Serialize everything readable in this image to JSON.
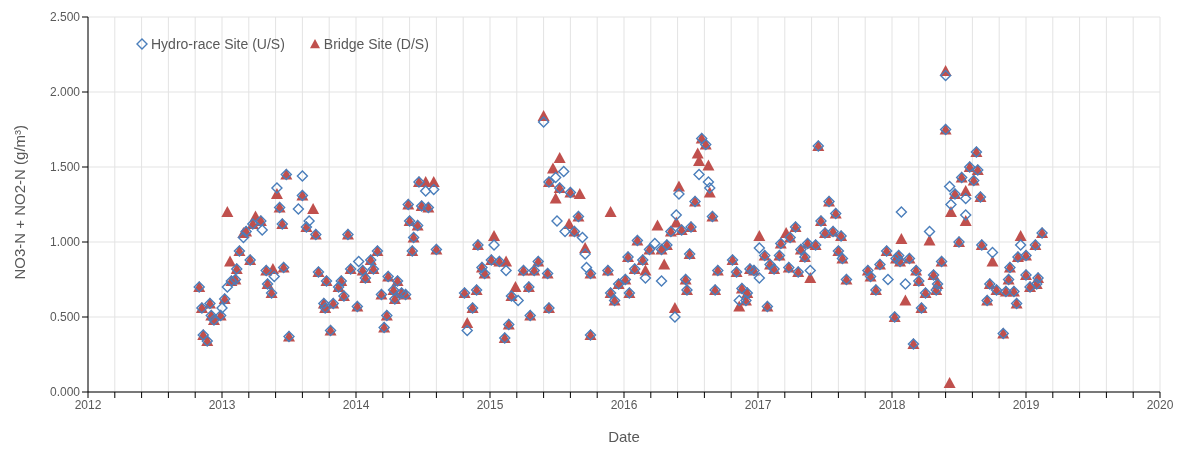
{
  "chart_data": {
    "type": "scatter",
    "xlabel": "Date",
    "ylabel": "NO3-N + NO2-N (g/m³)",
    "xlim": [
      2012,
      2020
    ],
    "ylim": [
      0,
      2.5
    ],
    "xticks": [
      2012,
      {
        "value": 2012.2,
        "label": null
      },
      {
        "value": 2012.4,
        "label": null
      },
      {
        "value": 2012.6,
        "label": null
      },
      {
        "value": 2012.8,
        "label": null
      },
      2013,
      {
        "value": 2013.2,
        "label": null
      },
      {
        "value": 2013.4,
        "label": null
      },
      {
        "value": 2013.6,
        "label": null
      },
      {
        "value": 2013.8,
        "label": null
      },
      2014,
      {
        "value": 2014.2,
        "label": null
      },
      {
        "value": 2014.4,
        "label": null
      },
      {
        "value": 2014.6,
        "label": null
      },
      {
        "value": 2014.8,
        "label": null
      },
      2015,
      {
        "value": 2015.2,
        "label": null
      },
      {
        "value": 2015.4,
        "label": null
      },
      {
        "value": 2015.6,
        "label": null
      },
      {
        "value": 2015.8,
        "label": null
      },
      2016,
      {
        "value": 2016.2,
        "label": null
      },
      {
        "value": 2016.4,
        "label": null
      },
      {
        "value": 2016.6,
        "label": null
      },
      {
        "value": 2016.8,
        "label": null
      },
      2017,
      {
        "value": 2017.2,
        "label": null
      },
      {
        "value": 2017.4,
        "label": null
      },
      {
        "value": 2017.6,
        "label": null
      },
      {
        "value": 2017.8,
        "label": null
      },
      2018,
      {
        "value": 2018.2,
        "label": null
      },
      {
        "value": 2018.4,
        "label": null
      },
      {
        "value": 2018.6,
        "label": null
      },
      {
        "value": 2018.8,
        "label": null
      },
      2019,
      {
        "value": 2019.2,
        "label": null
      },
      {
        "value": 2019.4,
        "label": null
      },
      {
        "value": 2019.6,
        "label": null
      },
      {
        "value": 2019.8,
        "label": null
      },
      2020
    ],
    "yticks": [
      {
        "value": 0,
        "label": "0.000"
      },
      {
        "value": 0.5,
        "label": "0.500"
      },
      {
        "value": 1,
        "label": "1.000"
      },
      {
        "value": 1.5,
        "label": "1.500"
      },
      {
        "value": 2,
        "label": "2.000"
      },
      {
        "value": 2.5,
        "label": "2.500"
      }
    ],
    "grid": true,
    "legend": "top left",
    "series": [
      {
        "name": "Hydro-race Site (U/S)",
        "color": "#4a7ebb",
        "marker": "diamond",
        "x": [
          2012.83,
          2012.85,
          2012.86,
          2012.89,
          2012.91,
          2012.92,
          2012.94,
          2012.99,
          2013.0,
          2013.02,
          2013.04,
          2013.07,
          2013.1,
          2013.11,
          2013.13,
          2013.16,
          2013.18,
          2013.21,
          2013.23,
          2013.29,
          2013.3,
          2013.33,
          2013.34,
          2013.37,
          2013.39,
          2013.41,
          2013.43,
          2013.45,
          2013.46,
          2013.48,
          2013.5,
          2013.57,
          2013.6,
          2013.6,
          2013.63,
          2013.65,
          2013.7,
          2013.72,
          2013.76,
          2013.77,
          2013.78,
          2013.81,
          2013.83,
          2013.87,
          2013.89,
          2013.91,
          2013.94,
          2013.96,
          2014.01,
          2014.02,
          2014.05,
          2014.07,
          2014.11,
          2014.13,
          2014.16,
          2014.19,
          2014.21,
          2014.23,
          2014.24,
          2014.28,
          2014.29,
          2014.31,
          2014.34,
          2014.37,
          2014.39,
          2014.4,
          2014.42,
          2014.43,
          2014.46,
          2014.47,
          2014.49,
          2014.52,
          2014.54,
          2014.58,
          2014.6,
          2014.81,
          2014.83,
          2014.87,
          2014.9,
          2014.91,
          2014.94,
          2014.96,
          2015.01,
          2015.03,
          2015.07,
          2015.11,
          2015.12,
          2015.14,
          2015.16,
          2015.21,
          2015.25,
          2015.29,
          2015.3,
          2015.33,
          2015.36,
          2015.4,
          2015.43,
          2015.44,
          2015.44,
          2015.49,
          2015.5,
          2015.52,
          2015.55,
          2015.56,
          2015.6,
          2015.63,
          2015.66,
          2015.69,
          2015.71,
          2015.72,
          2015.75,
          2015.75,
          2015.88,
          2015.9,
          2015.93,
          2015.96,
          2016.01,
          2016.03,
          2016.04,
          2016.08,
          2016.1,
          2016.14,
          2016.16,
          2016.19,
          2016.23,
          2016.28,
          2016.28,
          2016.32,
          2016.35,
          2016.38,
          2016.39,
          2016.41,
          2016.43,
          2016.46,
          2016.47,
          2016.49,
          2016.5,
          2016.53,
          2016.56,
          2016.58,
          2016.61,
          2016.63,
          2016.64,
          2016.66,
          2016.68,
          2016.7,
          2016.81,
          2016.84,
          2016.86,
          2016.88,
          2016.91,
          2016.92,
          2016.94,
          2016.97,
          2017.01,
          2017.01,
          2017.05,
          2017.07,
          2017.09,
          2017.12,
          2017.16,
          2017.17,
          2017.23,
          2017.24,
          2017.28,
          2017.3,
          2017.32,
          2017.35,
          2017.37,
          2017.39,
          2017.43,
          2017.45,
          2017.47,
          2017.5,
          2017.53,
          2017.56,
          2017.58,
          2017.6,
          2017.62,
          2017.63,
          2017.66,
          2017.82,
          2017.84,
          2017.88,
          2017.91,
          2017.96,
          2017.97,
          2018.02,
          2018.03,
          2018.05,
          2018.06,
          2018.07,
          2018.1,
          2018.13,
          2018.16,
          2018.18,
          2018.2,
          2018.22,
          2018.25,
          2018.28,
          2018.31,
          2018.33,
          2018.34,
          2018.37,
          2018.4,
          2018.4,
          2018.43,
          2018.44,
          2018.47,
          2018.5,
          2018.52,
          2018.55,
          2018.55,
          2018.58,
          2018.61,
          2018.63,
          2018.64,
          2018.66,
          2018.67,
          2018.71,
          2018.73,
          2018.75,
          2018.78,
          2018.83,
          2018.85,
          2018.87,
          2018.88,
          2018.91,
          2018.93,
          2018.94,
          2018.96,
          2019.0,
          2019.0,
          2019.03,
          2019.07,
          2019.08,
          2019.09,
          2019.12
        ],
        "values": [
          0.7,
          0.56,
          0.38,
          0.34,
          0.59,
          0.51,
          0.48,
          0.51,
          0.56,
          0.62,
          0.7,
          0.74,
          0.75,
          0.82,
          0.94,
          1.03,
          1.07,
          0.88,
          1.12,
          1.14,
          1.08,
          0.81,
          0.72,
          0.66,
          0.77,
          1.36,
          1.23,
          1.12,
          0.83,
          1.45,
          0.37,
          1.22,
          1.44,
          1.31,
          1.1,
          1.14,
          1.05,
          0.8,
          0.59,
          0.56,
          0.74,
          0.41,
          0.59,
          0.7,
          0.74,
          0.64,
          1.05,
          0.82,
          0.57,
          0.87,
          0.81,
          0.76,
          0.88,
          0.82,
          0.94,
          0.65,
          0.43,
          0.51,
          0.77,
          0.68,
          0.62,
          0.74,
          0.66,
          0.65,
          1.25,
          1.14,
          0.94,
          1.03,
          1.11,
          1.4,
          1.24,
          1.34,
          1.23,
          1.35,
          0.95,
          0.66,
          0.41,
          0.56,
          0.68,
          0.98,
          0.83,
          0.79,
          0.88,
          0.98,
          0.87,
          0.36,
          0.81,
          0.45,
          0.64,
          0.61,
          0.81,
          0.7,
          0.51,
          0.81,
          0.87,
          1.8,
          0.79,
          0.56,
          1.4,
          1.43,
          1.14,
          1.36,
          1.47,
          1.07,
          1.33,
          1.07,
          1.17,
          1.03,
          0.92,
          0.83,
          0.79,
          0.38,
          0.81,
          0.66,
          0.61,
          0.72,
          0.75,
          0.9,
          0.66,
          0.82,
          1.01,
          0.88,
          0.76,
          0.95,
          0.99,
          0.95,
          0.74,
          0.98,
          1.07,
          0.5,
          1.18,
          1.32,
          1.08,
          0.75,
          0.68,
          0.92,
          1.1,
          1.27,
          1.45,
          1.69,
          1.65,
          1.4,
          1.36,
          1.17,
          0.68,
          0.81,
          0.88,
          0.8,
          0.61,
          0.69,
          0.61,
          0.66,
          0.82,
          0.81,
          0.96,
          0.76,
          0.91,
          0.57,
          0.85,
          0.82,
          0.91,
          0.99,
          0.83,
          1.03,
          1.1,
          0.8,
          0.95,
          0.9,
          0.99,
          0.81,
          0.98,
          1.64,
          1.14,
          1.06,
          1.27,
          1.07,
          1.19,
          0.94,
          1.04,
          0.89,
          0.75,
          0.81,
          0.77,
          0.68,
          0.85,
          0.94,
          0.75,
          0.5,
          0.89,
          0.91,
          0.87,
          1.2,
          0.72,
          0.89,
          0.32,
          0.81,
          0.74,
          0.56,
          0.66,
          1.07,
          0.78,
          0.68,
          0.72,
          0.87,
          2.11,
          1.75,
          1.37,
          1.25,
          1.32,
          1.0,
          1.43,
          1.29,
          1.18,
          1.5,
          1.41,
          1.6,
          1.48,
          1.3,
          0.98,
          0.61,
          0.72,
          0.93,
          0.68,
          0.39,
          0.67,
          0.75,
          0.83,
          0.67,
          0.59,
          0.9,
          0.98,
          0.91,
          0.78,
          0.7,
          0.98,
          0.72,
          0.76,
          1.06
        ]
      },
      {
        "name": "Bridge Site (D/S)",
        "color": "#c0504d",
        "marker": "triangle",
        "x": [
          2012.83,
          2012.85,
          2012.86,
          2012.89,
          2012.91,
          2012.92,
          2012.94,
          2012.99,
          2013.02,
          2013.04,
          2013.06,
          2013.07,
          2013.1,
          2013.11,
          2013.13,
          2013.16,
          2013.18,
          2013.21,
          2013.23,
          2013.25,
          2013.29,
          2013.33,
          2013.34,
          2013.37,
          2013.38,
          2013.41,
          2013.43,
          2013.45,
          2013.46,
          2013.48,
          2013.5,
          2013.6,
          2013.63,
          2013.68,
          2013.7,
          2013.72,
          2013.76,
          2013.77,
          2013.78,
          2013.81,
          2013.83,
          2013.87,
          2013.89,
          2013.91,
          2013.94,
          2013.96,
          2014.01,
          2014.05,
          2014.07,
          2014.11,
          2014.13,
          2014.16,
          2014.19,
          2014.21,
          2014.23,
          2014.24,
          2014.28,
          2014.29,
          2014.31,
          2014.34,
          2014.37,
          2014.39,
          2014.4,
          2014.42,
          2014.43,
          2014.46,
          2014.47,
          2014.49,
          2014.52,
          2014.54,
          2014.58,
          2014.6,
          2014.81,
          2014.83,
          2014.87,
          2014.9,
          2014.91,
          2014.94,
          2014.96,
          2015.01,
          2015.03,
          2015.07,
          2015.11,
          2015.12,
          2015.14,
          2015.16,
          2015.19,
          2015.25,
          2015.29,
          2015.3,
          2015.33,
          2015.36,
          2015.4,
          2015.43,
          2015.44,
          2015.44,
          2015.47,
          2015.49,
          2015.52,
          2015.52,
          2015.59,
          2015.6,
          2015.63,
          2015.66,
          2015.67,
          2015.71,
          2015.75,
          2015.75,
          2015.88,
          2015.9,
          2015.9,
          2015.93,
          2015.96,
          2016.01,
          2016.03,
          2016.04,
          2016.08,
          2016.1,
          2016.14,
          2016.16,
          2016.19,
          2016.25,
          2016.28,
          2016.3,
          2016.32,
          2016.35,
          2016.38,
          2016.39,
          2016.41,
          2016.43,
          2016.46,
          2016.47,
          2016.49,
          2016.5,
          2016.53,
          2016.55,
          2016.56,
          2016.58,
          2016.61,
          2016.63,
          2016.64,
          2016.66,
          2016.68,
          2016.7,
          2016.81,
          2016.84,
          2016.86,
          2016.88,
          2016.91,
          2016.92,
          2016.94,
          2016.97,
          2017.01,
          2017.05,
          2017.07,
          2017.09,
          2017.12,
          2017.16,
          2017.17,
          2017.21,
          2017.23,
          2017.24,
          2017.28,
          2017.3,
          2017.32,
          2017.35,
          2017.37,
          2017.39,
          2017.43,
          2017.45,
          2017.47,
          2017.5,
          2017.53,
          2017.56,
          2017.58,
          2017.6,
          2017.62,
          2017.63,
          2017.66,
          2017.82,
          2017.84,
          2017.88,
          2017.91,
          2017.96,
          2018.02,
          2018.03,
          2018.05,
          2018.06,
          2018.07,
          2018.1,
          2018.13,
          2018.16,
          2018.18,
          2018.2,
          2018.22,
          2018.25,
          2018.28,
          2018.31,
          2018.33,
          2018.34,
          2018.37,
          2018.4,
          2018.4,
          2018.43,
          2018.44,
          2018.47,
          2018.5,
          2018.52,
          2018.55,
          2018.55,
          2018.58,
          2018.61,
          2018.63,
          2018.64,
          2018.66,
          2018.67,
          2018.71,
          2018.73,
          2018.75,
          2018.78,
          2018.83,
          2018.85,
          2018.87,
          2018.88,
          2018.91,
          2018.93,
          2018.94,
          2018.96,
          2019.0,
          2019.0,
          2019.03,
          2019.07,
          2019.08,
          2019.09,
          2019.12
        ],
        "values": [
          0.7,
          0.56,
          0.38,
          0.34,
          0.59,
          0.51,
          0.48,
          0.51,
          0.62,
          1.2,
          0.87,
          0.74,
          0.75,
          0.82,
          0.94,
          1.06,
          1.07,
          0.88,
          1.12,
          1.17,
          1.14,
          0.81,
          0.72,
          0.66,
          0.82,
          1.32,
          1.23,
          1.12,
          0.83,
          1.45,
          0.37,
          1.31,
          1.1,
          1.22,
          1.05,
          0.8,
          0.59,
          0.56,
          0.74,
          0.41,
          0.59,
          0.7,
          0.74,
          0.64,
          1.05,
          0.82,
          0.57,
          0.81,
          0.76,
          0.88,
          0.82,
          0.94,
          0.65,
          0.43,
          0.51,
          0.77,
          0.68,
          0.62,
          0.74,
          0.66,
          0.65,
          1.25,
          1.14,
          0.94,
          1.03,
          1.11,
          1.4,
          1.24,
          1.4,
          1.23,
          1.4,
          0.95,
          0.66,
          0.46,
          0.56,
          0.68,
          0.98,
          0.83,
          0.79,
          0.88,
          1.04,
          0.87,
          0.36,
          0.87,
          0.45,
          0.64,
          0.7,
          0.81,
          0.7,
          0.51,
          0.81,
          0.87,
          1.84,
          0.79,
          0.56,
          1.4,
          1.49,
          1.29,
          1.56,
          1.36,
          1.12,
          1.33,
          1.07,
          1.17,
          1.32,
          0.96,
          0.79,
          0.38,
          0.81,
          0.66,
          1.2,
          0.61,
          0.72,
          0.75,
          0.9,
          0.66,
          0.82,
          1.01,
          0.88,
          0.81,
          0.95,
          1.11,
          0.95,
          0.85,
          0.98,
          1.07,
          0.56,
          1.13,
          1.37,
          1.08,
          0.75,
          0.68,
          0.92,
          1.1,
          1.27,
          1.59,
          1.54,
          1.69,
          1.65,
          1.51,
          1.33,
          1.17,
          0.68,
          0.81,
          0.88,
          0.8,
          0.57,
          0.69,
          0.61,
          0.66,
          0.82,
          0.81,
          1.04,
          0.91,
          0.57,
          0.85,
          0.82,
          0.91,
          0.99,
          1.06,
          0.83,
          1.03,
          1.1,
          0.8,
          0.95,
          0.9,
          0.99,
          0.76,
          0.98,
          1.64,
          1.14,
          1.06,
          1.27,
          1.07,
          1.19,
          0.94,
          1.04,
          0.89,
          0.75,
          0.81,
          0.77,
          0.68,
          0.85,
          0.94,
          0.5,
          0.89,
          0.91,
          0.87,
          1.02,
          0.61,
          0.89,
          0.32,
          0.81,
          0.74,
          0.56,
          0.66,
          1.01,
          0.78,
          0.68,
          0.72,
          0.87,
          2.14,
          1.75,
          0.06,
          1.2,
          1.32,
          1.0,
          1.43,
          1.34,
          1.14,
          1.5,
          1.41,
          1.6,
          1.48,
          1.3,
          0.98,
          0.61,
          0.72,
          0.87,
          0.68,
          0.39,
          0.67,
          0.75,
          0.83,
          0.67,
          0.59,
          0.9,
          1.04,
          0.91,
          0.78,
          0.7,
          0.98,
          0.72,
          0.76,
          1.06
        ]
      }
    ]
  }
}
